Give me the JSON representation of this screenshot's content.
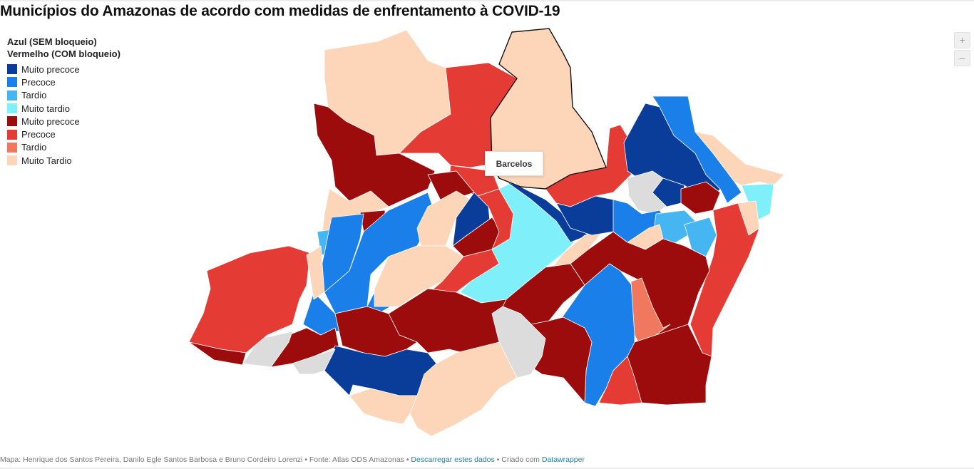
{
  "title": "Municípios do Amazonas de acordo com medidas de enfrentamento à COVID-19",
  "legend": {
    "title_line1": "Azul (SEM bloqueio)",
    "title_line2": "Vermelho (COM bloqueio)",
    "items": [
      {
        "label": "Muito precoce",
        "color": "#0a3d9a"
      },
      {
        "label": "Precoce",
        "color": "#1a7fe8"
      },
      {
        "label": "Tardio",
        "color": "#45b6f2"
      },
      {
        "label": "Muito tardio",
        "color": "#7ff0fa"
      },
      {
        "label": "Muito precoce",
        "color": "#9c0c0c"
      },
      {
        "label": "Precoce",
        "color": "#e53b35"
      },
      {
        "label": "Tardio",
        "color": "#f0785e"
      },
      {
        "label": "Muito Tardio",
        "color": "#fdd5b8"
      }
    ]
  },
  "colors": {
    "blue_very_early": "#0a3d9a",
    "blue_early": "#1a7fe8",
    "blue_late": "#45b6f2",
    "blue_very_late": "#7ff0fa",
    "red_very_early": "#9c0c0c",
    "red_early": "#e53b35",
    "red_late": "#f0785e",
    "red_very_late": "#fdd5b8",
    "no_data": "#dcdcdc"
  },
  "zoom": {
    "in_label": "+",
    "out_label": "–"
  },
  "tooltip": {
    "name": "Barcelos"
  },
  "footer": {
    "source": "Mapa: Henrique dos Santos Pereira, Danilo Egle Santos Barbosa e Bruno Cordeiro Lorenzi • Fonte: Atlas ODS Amazonas •",
    "download_label": "Descarregar estes dados",
    "created_with": "• Criado com",
    "datawrapper_label": "Datawrapper"
  }
}
